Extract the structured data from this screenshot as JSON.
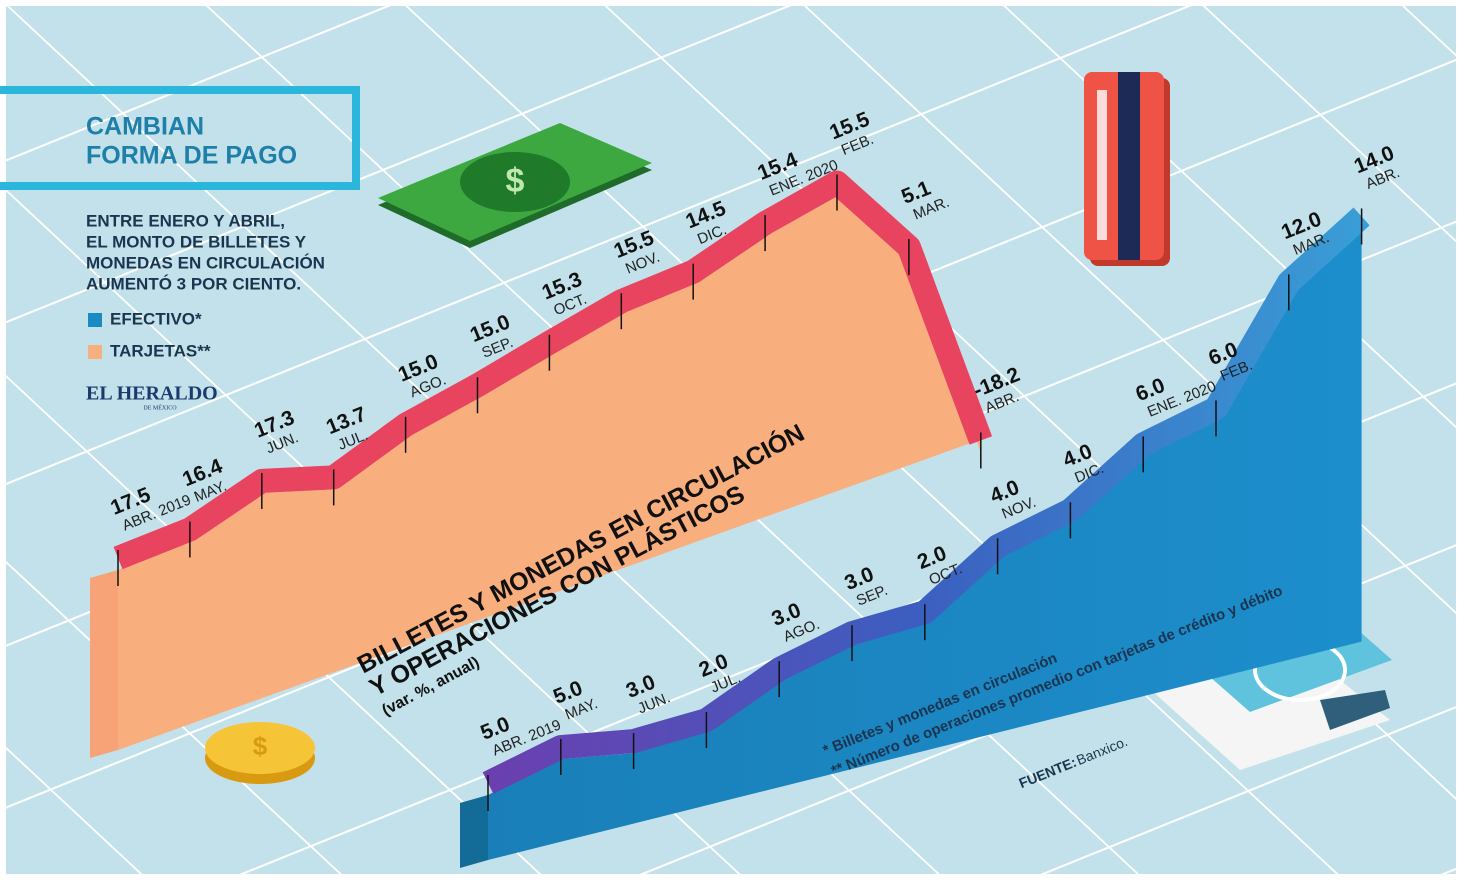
{
  "chart_data": {
    "type": "line",
    "title": [
      "CAMBIAN",
      "FORMA DE PAGO"
    ],
    "subtitle": [
      "ENTRE ENERO Y ABRIL,",
      "EL MONTO DE BILLETES Y",
      "MONEDAS EN CIRCULACIÓN",
      "AUMENTÓ 3 POR CIENTO."
    ],
    "chart_title": [
      "BILLETES Y MONEDAS EN CIRCULACIÓN",
      "Y OPERACIONES CON PLÁSTICOS"
    ],
    "units": "(var. %, anual)",
    "categories": [
      "ABR. 2019",
      "MAY.",
      "JUN.",
      "JUL.",
      "AGO.",
      "SEP.",
      "OCT.",
      "NOV.",
      "DIC.",
      "ENE. 2020",
      "FEB.",
      "MAR.",
      "ABR."
    ],
    "series": [
      {
        "name": "EFECTIVO*",
        "color": "#1a8ac4",
        "values": [
          5.0,
          5.0,
          3.0,
          2.0,
          3.0,
          3.0,
          2.0,
          4.0,
          4.0,
          6.0,
          6.0,
          12.0,
          14.0
        ],
        "value_labels": [
          "5.0",
          "5.0",
          "3.0",
          "2.0",
          "3.0",
          "3.0",
          "2.0",
          "4.0",
          "4.0",
          "6.0",
          "6.0",
          "12.0",
          "14.0"
        ]
      },
      {
        "name": "TARJETAS**",
        "color": "#f9ae7e",
        "values": [
          17.5,
          16.4,
          17.3,
          13.7,
          15.0,
          15.0,
          15.3,
          15.5,
          14.5,
          15.4,
          15.5,
          5.1,
          -18.2
        ],
        "value_labels": [
          "17.5",
          "16.4",
          "17.3",
          "13.7",
          "15.0",
          "15.0",
          "15.3",
          "15.5",
          "14.5",
          "15.4",
          "15.5",
          "5.1",
          "-18.2"
        ]
      }
    ],
    "notes": [
      "* Billetes y monedas en circulación",
      "** Número de operaciones promedio con tarjetas de crédito y débito"
    ],
    "source_label": "FUENTE:",
    "source": "Banxico.",
    "brand": "EL HERALDO",
    "brand_sub": "DE MÉXICO"
  }
}
